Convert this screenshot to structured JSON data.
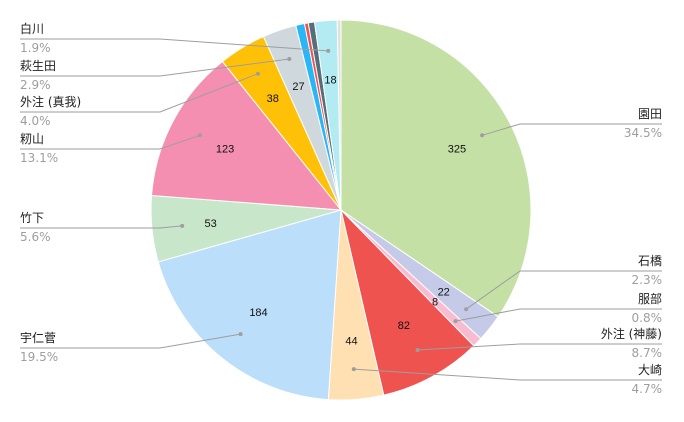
{
  "chart_data": {
    "type": "pie",
    "title": "",
    "slices": [
      {
        "name": "園田",
        "value": 325,
        "percent": "34.5%",
        "color": "#c5e0a5"
      },
      {
        "name": "石橋",
        "value": 22,
        "percent": "2.3%",
        "color": "#c5cae9"
      },
      {
        "name": "服部",
        "value": 8,
        "percent": "0.8%",
        "color": "#f8bbd0"
      },
      {
        "name": "外注 (神藤)",
        "value": 82,
        "percent": "8.7%",
        "color": "#ef5350"
      },
      {
        "name": "大崎",
        "value": 44,
        "percent": "4.7%",
        "color": "#ffe0b2"
      },
      {
        "name": "宇仁菅",
        "value": 184,
        "percent": "19.5%",
        "color": "#bbdefb"
      },
      {
        "name": "竹下",
        "value": 53,
        "percent": "5.6%",
        "color": "#c8e6c9"
      },
      {
        "name": "籾山",
        "value": 123,
        "percent": "13.1%",
        "color": "#f48fb1"
      },
      {
        "name": "外注 (真我)",
        "value": 38,
        "percent": "4.0%",
        "color": "#ffc107"
      },
      {
        "name": "萩生田",
        "value": 27,
        "percent": "2.9%",
        "color": "#cfd8dc"
      },
      {
        "name": "白川",
        "value": 18,
        "percent": "1.9%",
        "color": "#b2ebf2"
      }
    ],
    "minor_slices": [
      {
        "value": 7,
        "color": "#29b6f6"
      },
      {
        "value": 3,
        "color": "#ef5350"
      },
      {
        "value": 5,
        "color": "#546e7a"
      },
      {
        "value": 3,
        "color": "#e0e0e0"
      }
    ],
    "legend": "none",
    "leader_line_color": "#9e9e9e"
  }
}
